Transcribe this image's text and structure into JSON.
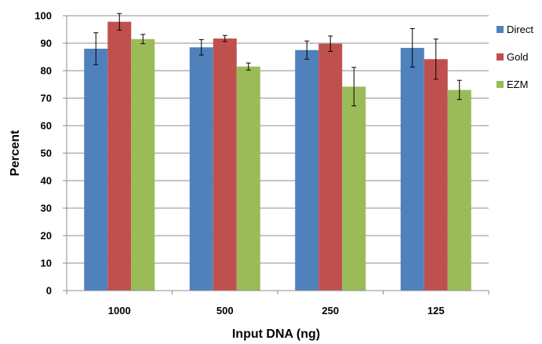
{
  "chart_data": {
    "type": "bar",
    "title": "",
    "xlabel": "Input DNA (ng)",
    "ylabel": "Percent",
    "categories": [
      "1000",
      "500",
      "250",
      "125"
    ],
    "ylim": [
      0,
      100
    ],
    "yticks": [
      0,
      10,
      20,
      30,
      40,
      50,
      60,
      70,
      80,
      90,
      100
    ],
    "grid": true,
    "legend_position": "right",
    "series": [
      {
        "name": "Direct",
        "color": "#4F81BD",
        "values": [
          88,
          88.5,
          87.5,
          88.3
        ],
        "error": [
          5.8,
          2.8,
          3.3,
          7.0
        ]
      },
      {
        "name": "Gold",
        "color": "#C0504D",
        "values": [
          97.8,
          91.7,
          89.8,
          84.2
        ],
        "error": [
          3.0,
          1.1,
          2.8,
          7.3
        ]
      },
      {
        "name": "EZM",
        "color": "#9BBB59",
        "values": [
          91.5,
          81.5,
          74.2,
          73.0
        ],
        "error": [
          1.7,
          1.3,
          7.0,
          3.5
        ]
      }
    ]
  }
}
